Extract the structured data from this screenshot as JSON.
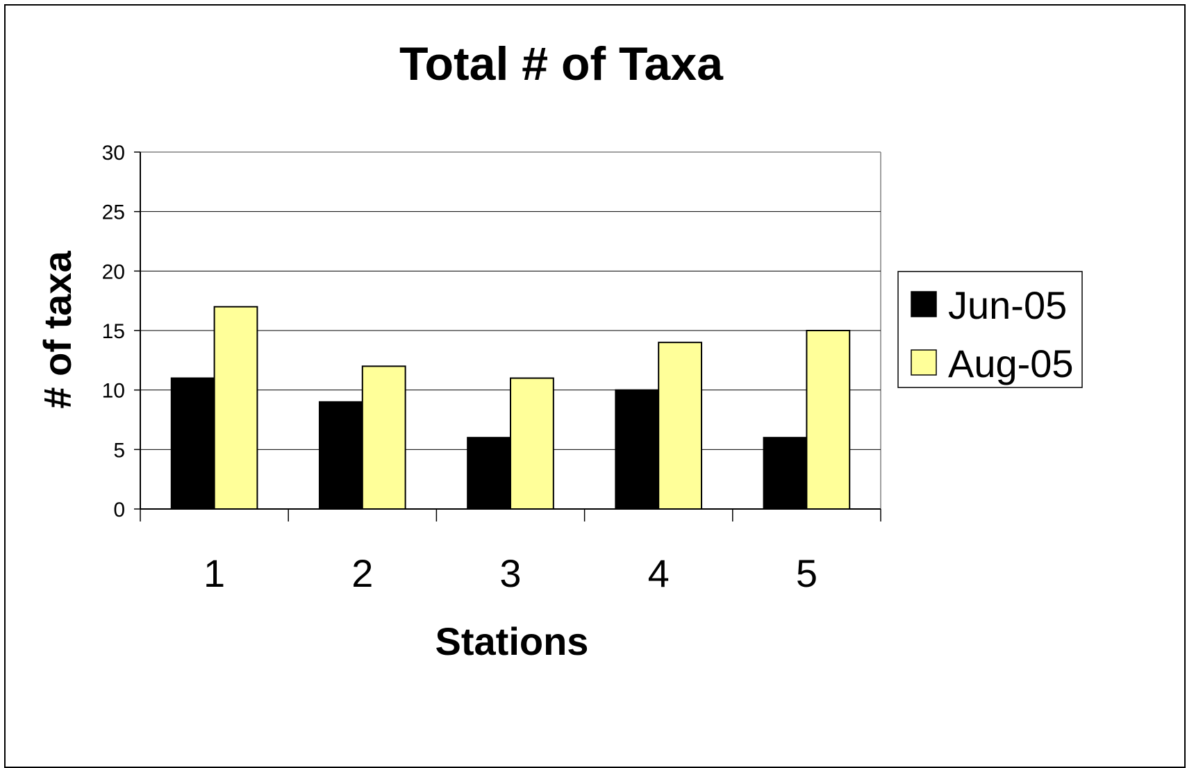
{
  "chart_data": {
    "type": "bar",
    "title": "Total # of Taxa",
    "xlabel": "Stations",
    "ylabel": "# of taxa",
    "categories": [
      "1",
      "2",
      "3",
      "4",
      "5"
    ],
    "series": [
      {
        "name": "Jun-05",
        "values": [
          11,
          9,
          6,
          10,
          6
        ],
        "color": "#000000"
      },
      {
        "name": "Aug-05",
        "values": [
          17,
          12,
          11,
          14,
          15
        ],
        "color": "#FFFF99"
      }
    ],
    "ylim": [
      0,
      30
    ],
    "yticks": [
      "0",
      "5",
      "10",
      "15",
      "20",
      "25",
      "30"
    ],
    "grid": true,
    "legend_position": "right"
  }
}
